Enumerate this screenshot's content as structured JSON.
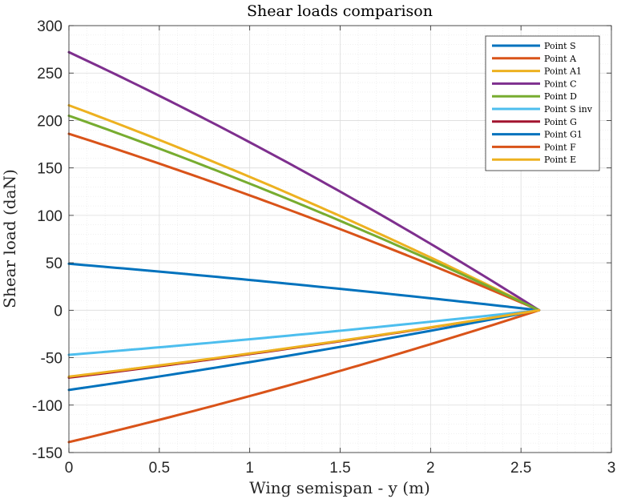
{
  "chart_data": {
    "type": "line",
    "title": "Shear loads comparison",
    "xlabel": "Wing semispan - y (m)",
    "ylabel": "Shear load (daN)",
    "xlim": [
      0,
      3
    ],
    "ylim": [
      -150,
      300
    ],
    "xticks": [
      0,
      0.5,
      1,
      1.5,
      2,
      2.5,
      3
    ],
    "xtick_labels": [
      "0",
      "0.5",
      "1",
      "1.5",
      "2",
      "2.5",
      "3"
    ],
    "yticks": [
      -150,
      -100,
      -50,
      0,
      50,
      100,
      150,
      200,
      250,
      300
    ],
    "ytick_labels": [
      "-150",
      "-100",
      "-50",
      "0",
      "50",
      "100",
      "150",
      "200",
      "250",
      "300"
    ],
    "grid": "major and minor",
    "legend_position": "top-right",
    "semispan_end": 2.6,
    "series": [
      {
        "name": "Point S",
        "color": "#0072BD",
        "root_value": 49,
        "curvature": 0.15
      },
      {
        "name": "Point A",
        "color": "#D95319",
        "root_value": 186,
        "curvature": 0.15
      },
      {
        "name": "Point A1",
        "color": "#EDB120",
        "root_value": 216,
        "curvature": 0.15
      },
      {
        "name": "Point C",
        "color": "#7E2F8E",
        "root_value": 272,
        "curvature": 0.15
      },
      {
        "name": "Point D",
        "color": "#77AC30",
        "root_value": 205,
        "curvature": 0.15
      },
      {
        "name": "Point S inv",
        "color": "#4DBEEE",
        "root_value": -47,
        "curvature": 0.15
      },
      {
        "name": "Point G",
        "color": "#A2142F",
        "root_value": -71,
        "curvature": 0.15
      },
      {
        "name": "Point G1",
        "color": "#0072BD",
        "root_value": -84,
        "curvature": 0.15
      },
      {
        "name": "Point F",
        "color": "#D95319",
        "root_value": -139,
        "curvature": 0.15
      },
      {
        "name": "Point E",
        "color": "#EDB120",
        "root_value": -70,
        "curvature": 0.15
      }
    ]
  }
}
